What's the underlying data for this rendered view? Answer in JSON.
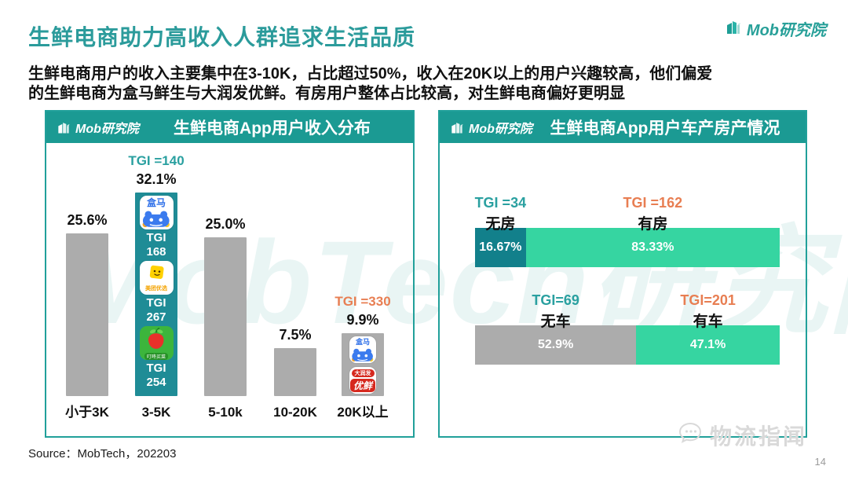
{
  "page": {
    "title": "生鲜电商助力高收入人群追求生活品质",
    "intro_line1": "生鲜电商用户的收入主要集中在3-10K，占比超过50%，收入在20K以上的用户兴趣较高，他们偏爱",
    "intro_line2": "的生鲜电商为盒马鲜生与大润发优鲜。有房用户整体占比较高，对生鲜电商偏好更明显",
    "brand": "Mob研究院",
    "source": "Source：MobTech，202203",
    "page_number": "14",
    "watermark_center": "MobTech研究院",
    "watermark_corner": "物流指闻"
  },
  "colors": {
    "title_teal": "#2B9B9B",
    "panel_teal": "#1B9A93",
    "bar_teal": "#1F8C96",
    "dark_teal": "#12808B",
    "mint": "#36D5A1",
    "gray": "#ACACAC",
    "orange": "#E87E52",
    "tgi_teal": "#2AA0A0"
  },
  "panels": [
    {
      "logo": "Mob研究院",
      "title": "生鲜电商App用户收入分布"
    },
    {
      "logo": "Mob研究院",
      "title": "生鲜电商App用户车产房产情况"
    }
  ],
  "chart_data": [
    {
      "type": "bar",
      "title": "生鲜电商App用户收入分布",
      "categories": [
        "小于3K",
        "3-5K",
        "5-10k",
        "10-20K",
        "20K以上"
      ],
      "values": [
        25.6,
        32.1,
        25.0,
        7.5,
        9.9
      ],
      "value_labels": [
        "25.6%",
        "32.1%",
        "25.0%",
        "7.5%",
        "9.9%"
      ],
      "ylim": [
        0,
        35
      ],
      "grid": false,
      "highlight_index": 1,
      "tgi_annotations": [
        {
          "index": 1,
          "label": "TGI =140",
          "color_key": "tgi_teal"
        },
        {
          "index": 4,
          "label": "TGI =330",
          "color_key": "orange"
        }
      ],
      "apps_in_bars": [
        {
          "bar_index": 1,
          "apps": [
            {
              "name": "盒马",
              "icon": "hema-icon",
              "tgi_label": "TGI",
              "tgi_value": "168"
            },
            {
              "name": "美团优选",
              "icon": "meituan-youxuan-icon",
              "tgi_label": "TGI",
              "tgi_value": "267"
            },
            {
              "name": "叮咚买菜",
              "icon": "dingdong-maicai-icon",
              "tgi_label": "TGI",
              "tgi_value": "254"
            }
          ]
        },
        {
          "bar_index": 4,
          "apps": [
            {
              "name": "盒马",
              "icon": "hema-icon"
            },
            {
              "name": "大润发优鲜",
              "icon": "darunfa-youxian-icon",
              "display_top": "大润发",
              "display_bottom": "优鲜"
            }
          ]
        }
      ]
    },
    {
      "type": "bar",
      "subtype": "stacked-horizontal",
      "title": "生鲜电商App用户车产房产情况",
      "rows": [
        {
          "segments": [
            {
              "label": "无房",
              "tgi": "TGI =34",
              "value": 16.67,
              "value_label": "16.67%",
              "color_key": "dark_teal",
              "tgi_color_key": "tgi_teal"
            },
            {
              "label": "有房",
              "tgi": "TGI =162",
              "value": 83.33,
              "value_label": "83.33%",
              "color_key": "mint",
              "tgi_color_key": "orange"
            }
          ]
        },
        {
          "segments": [
            {
              "label": "无车",
              "tgi": "TGI=69",
              "value": 52.9,
              "value_label": "52.9%",
              "color_key": "gray",
              "tgi_color_key": "tgi_teal"
            },
            {
              "label": "有车",
              "tgi": "TGI=201",
              "value": 47.1,
              "value_label": "47.1%",
              "color_key": "mint",
              "tgi_color_key": "orange"
            }
          ]
        }
      ]
    }
  ]
}
